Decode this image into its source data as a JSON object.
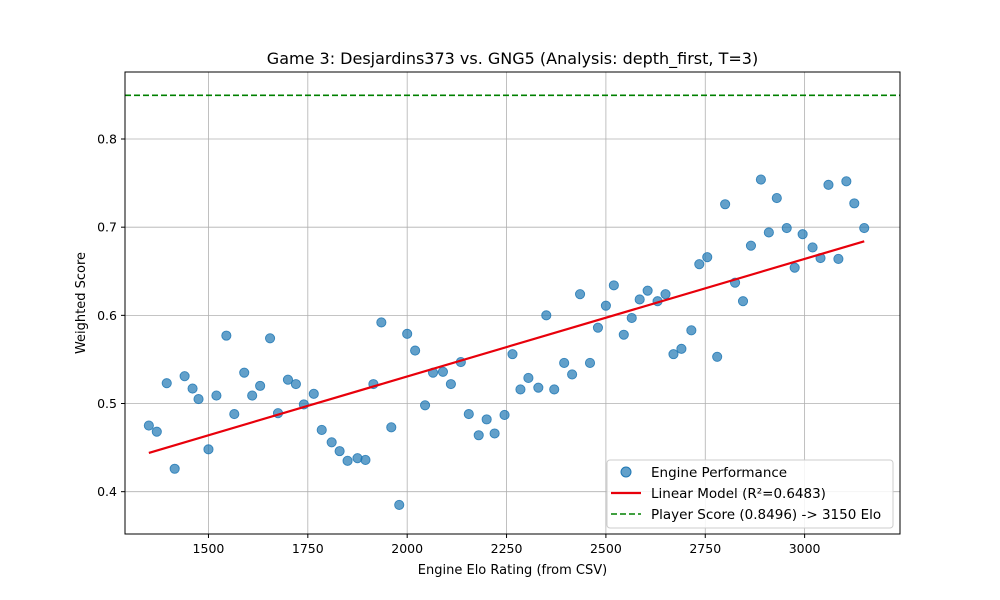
{
  "chart_data": {
    "type": "scatter",
    "title": "Game 3: Desjardins373 vs. GNG5 (Analysis: depth_first, T=3)",
    "xlabel": "Engine Elo Rating (from CSV)",
    "ylabel": "Weighted Score",
    "xlim": [
      1290,
      3240
    ],
    "ylim": [
      0.352,
      0.876
    ],
    "xticks": [
      1500,
      1750,
      2000,
      2250,
      2500,
      2750,
      3000
    ],
    "yticks": [
      0.4,
      0.5,
      0.6,
      0.7,
      0.8
    ],
    "xtick_labels": [
      "1500",
      "1750",
      "2000",
      "2250",
      "2500",
      "2750",
      "3000"
    ],
    "ytick_labels": [
      "0.4",
      "0.5",
      "0.6",
      "0.7",
      "0.8"
    ],
    "grid": true,
    "legend_position": "lower-right",
    "series": [
      {
        "name": "Engine Performance",
        "type": "scatter",
        "color": "#1f77b4",
        "points": [
          [
            1350,
            0.475
          ],
          [
            1370,
            0.468
          ],
          [
            1395,
            0.523
          ],
          [
            1415,
            0.426
          ],
          [
            1440,
            0.531
          ],
          [
            1460,
            0.517
          ],
          [
            1475,
            0.505
          ],
          [
            1500,
            0.448
          ],
          [
            1520,
            0.509
          ],
          [
            1545,
            0.577
          ],
          [
            1565,
            0.488
          ],
          [
            1590,
            0.535
          ],
          [
            1610,
            0.509
          ],
          [
            1630,
            0.52
          ],
          [
            1655,
            0.574
          ],
          [
            1675,
            0.489
          ],
          [
            1700,
            0.527
          ],
          [
            1720,
            0.522
          ],
          [
            1740,
            0.499
          ],
          [
            1765,
            0.511
          ],
          [
            1785,
            0.47
          ],
          [
            1810,
            0.456
          ],
          [
            1830,
            0.446
          ],
          [
            1850,
            0.435
          ],
          [
            1875,
            0.438
          ],
          [
            1895,
            0.436
          ],
          [
            1915,
            0.522
          ],
          [
            1935,
            0.592
          ],
          [
            1960,
            0.473
          ],
          [
            1980,
            0.385
          ],
          [
            2000,
            0.579
          ],
          [
            2020,
            0.56
          ],
          [
            2045,
            0.498
          ],
          [
            2065,
            0.535
          ],
          [
            2090,
            0.536
          ],
          [
            2110,
            0.522
          ],
          [
            2135,
            0.547
          ],
          [
            2155,
            0.488
          ],
          [
            2180,
            0.464
          ],
          [
            2200,
            0.482
          ],
          [
            2220,
            0.466
          ],
          [
            2245,
            0.487
          ],
          [
            2265,
            0.556
          ],
          [
            2285,
            0.516
          ],
          [
            2305,
            0.529
          ],
          [
            2330,
            0.518
          ],
          [
            2350,
            0.6
          ],
          [
            2370,
            0.516
          ],
          [
            2395,
            0.546
          ],
          [
            2415,
            0.533
          ],
          [
            2435,
            0.624
          ],
          [
            2460,
            0.546
          ],
          [
            2480,
            0.586
          ],
          [
            2500,
            0.611
          ],
          [
            2520,
            0.634
          ],
          [
            2545,
            0.578
          ],
          [
            2565,
            0.597
          ],
          [
            2585,
            0.618
          ],
          [
            2605,
            0.628
          ],
          [
            2630,
            0.616
          ],
          [
            2650,
            0.624
          ],
          [
            2670,
            0.556
          ],
          [
            2690,
            0.562
          ],
          [
            2715,
            0.583
          ],
          [
            2735,
            0.658
          ],
          [
            2755,
            0.666
          ],
          [
            2780,
            0.553
          ],
          [
            2800,
            0.726
          ],
          [
            2825,
            0.637
          ],
          [
            2845,
            0.616
          ],
          [
            2865,
            0.679
          ],
          [
            2890,
            0.754
          ],
          [
            2910,
            0.694
          ],
          [
            2930,
            0.733
          ],
          [
            2955,
            0.699
          ],
          [
            2975,
            0.654
          ],
          [
            2995,
            0.692
          ],
          [
            3020,
            0.677
          ],
          [
            3040,
            0.665
          ],
          [
            3060,
            0.748
          ],
          [
            3085,
            0.664
          ],
          [
            3105,
            0.752
          ],
          [
            3125,
            0.727
          ],
          [
            3150,
            0.699
          ]
        ]
      },
      {
        "name": "Linear Model (R²=0.6483)",
        "type": "line",
        "color": "#e8000b",
        "x": [
          1350,
          3150
        ],
        "y": [
          0.444,
          0.684
        ]
      },
      {
        "name": "Player Score (0.8496) -> 3150 Elo",
        "type": "hline",
        "color": "#008000",
        "y": 0.8496
      }
    ]
  }
}
